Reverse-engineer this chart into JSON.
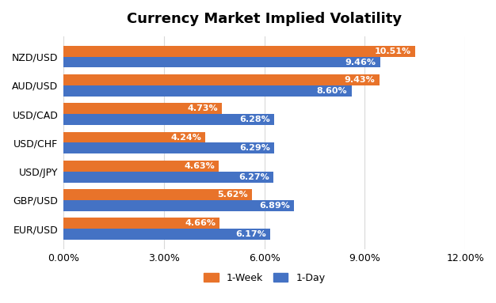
{
  "title": "Currency Market Implied Volatility",
  "categories": [
    "NZD/USD",
    "AUD/USD",
    "USD/CAD",
    "USD/CHF",
    "USD/JPY",
    "GBP/USD",
    "EUR/USD"
  ],
  "week1_values": [
    10.51,
    9.43,
    4.73,
    4.24,
    4.63,
    5.62,
    4.66
  ],
  "day1_values": [
    9.46,
    8.6,
    6.28,
    6.29,
    6.27,
    6.89,
    6.17
  ],
  "week1_color": "#E8732A",
  "day1_color": "#4472C4",
  "xlim": [
    0,
    12
  ],
  "xticks": [
    0,
    3,
    6,
    9,
    12
  ],
  "xtick_labels": [
    "0.00%",
    "3.00%",
    "6.00%",
    "9.00%",
    "12.00%"
  ],
  "background_color": "#FFFFFF",
  "grid_color": "#D9D9D9",
  "title_fontsize": 13,
  "label_fontsize": 9,
  "bar_label_fontsize": 8,
  "legend_labels": [
    "1-Week",
    "1-Day"
  ],
  "bar_height": 0.38
}
